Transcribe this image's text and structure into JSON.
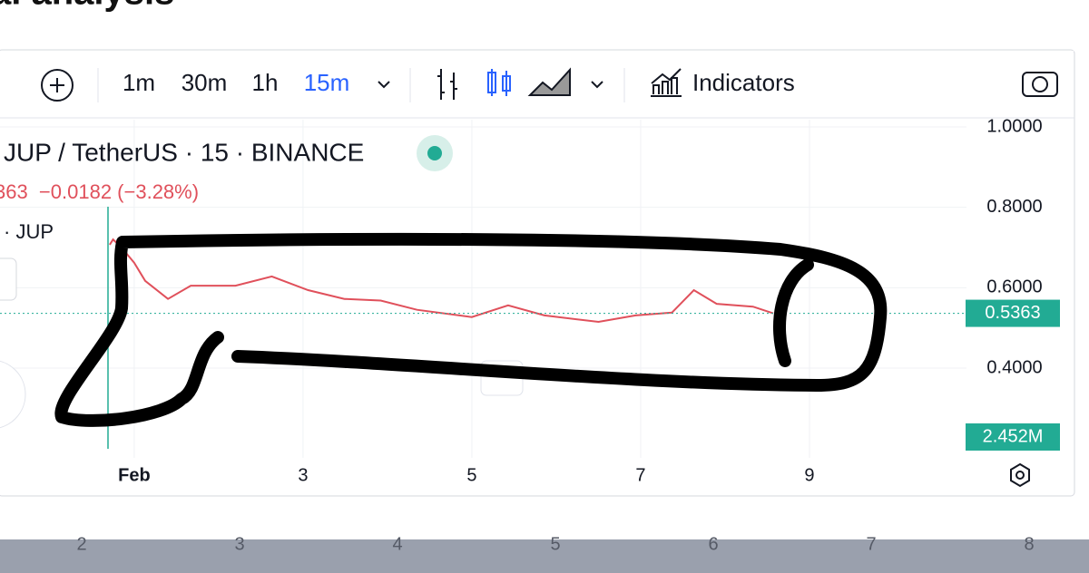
{
  "header": {
    "title": "al analysis"
  },
  "toolbar": {
    "intervals": [
      "1m",
      "30m",
      "1h",
      "15m"
    ],
    "indicators": "Indicators"
  },
  "legend": {
    "symbol": "JUP / TetherUS · 15 · BINANCE",
    "change": "363  −0.0182 (−3.28%)",
    "volume_label": "· JUP"
  },
  "volume_label": "2.452M",
  "background_axis": [
    "2",
    "3",
    "4",
    "5",
    "6",
    "7",
    "8"
  ],
  "chart_data": {
    "type": "line",
    "x": [
      0.71,
      0.75,
      0.85,
      1.0,
      1.13,
      1.4,
      1.67,
      2.2,
      2.63,
      3.06,
      3.49,
      3.92,
      4.35,
      5.0,
      5.43,
      5.86,
      6.5,
      6.94,
      7.37,
      7.63,
      7.9,
      8.33,
      8.57
    ],
    "series": [
      {
        "name": "JUP / TetherUS",
        "color": "#e0505b",
        "values": [
          0.707,
          0.72,
          0.7,
          0.662,
          0.617,
          0.572,
          0.605,
          0.605,
          0.628,
          0.594,
          0.572,
          0.568,
          0.545,
          0.527,
          0.556,
          0.531,
          0.515,
          0.531,
          0.538,
          0.594,
          0.56,
          0.553,
          0.5363
        ]
      }
    ],
    "last_price": {
      "value": 0.5363,
      "label": "0.5363"
    },
    "xlim": [
      -0.59,
      10.86
    ],
    "xticks": [
      {
        "value": 1,
        "label": "Feb"
      },
      3,
      5,
      7,
      9
    ],
    "ylim": [
      0.188,
      1.018
    ],
    "yticks": [
      {
        "value": 1,
        "label": "1.0000"
      },
      {
        "value": 0.8,
        "label": "0.8000"
      },
      {
        "value": 0.6,
        "label": "0.6000"
      },
      {
        "value": 0.4,
        "label": "0.4000"
      }
    ],
    "grid": true
  }
}
